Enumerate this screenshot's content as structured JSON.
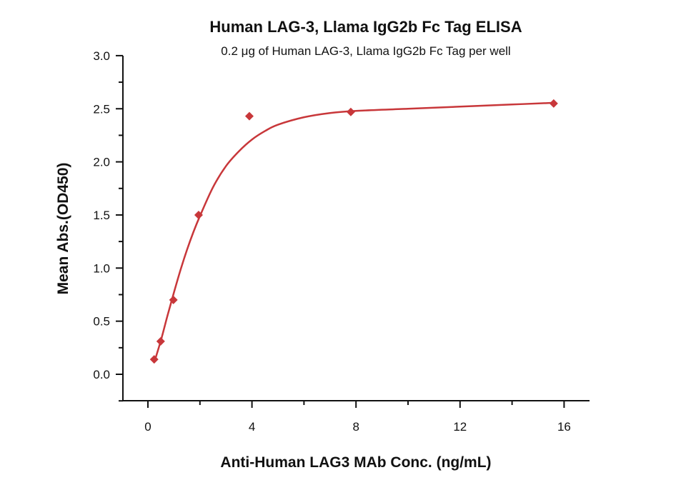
{
  "chart_data": {
    "type": "scatter",
    "title": "Human LAG-3, Llama IgG2b Fc Tag ELISA",
    "subtitle": "0.2 μg of Human LAG-3, Llama IgG2b Fc Tag per well",
    "xlabel": "Anti-Human LAG3 MAb Conc. (ng/mL)",
    "ylabel": "Mean Abs.(OD450)",
    "xlim": [
      -1,
      17
    ],
    "ylim": [
      -0.25,
      3.0
    ],
    "x_ticks": [
      0,
      4,
      8,
      12,
      16
    ],
    "x_tick_labels": [
      "0",
      "4",
      "8",
      "12",
      "16"
    ],
    "x_minor_ticks": [
      2,
      6,
      10,
      14
    ],
    "y_ticks": [
      0.0,
      0.5,
      1.0,
      1.5,
      2.0,
      2.5,
      3.0
    ],
    "y_tick_labels": [
      "0.0",
      "0.5",
      "1.0",
      "1.5",
      "2.0",
      "2.5",
      "3.0"
    ],
    "y_minor_ticks": [
      -0.25,
      0.25,
      0.75,
      1.25,
      1.75,
      2.25,
      2.75
    ],
    "grid": false,
    "series": [
      {
        "x": [
          0.24,
          0.49,
          0.98,
          1.95,
          3.9,
          7.8,
          15.6
        ],
        "y": [
          0.14,
          0.31,
          0.7,
          1.5,
          2.43,
          2.47,
          2.55
        ],
        "marker": "diamond",
        "color": "#c8373a"
      }
    ],
    "fit_curve": {
      "color": "#c8373a",
      "x": [
        0.24,
        0.5,
        0.75,
        1,
        1.25,
        1.5,
        1.75,
        2,
        2.5,
        3,
        3.5,
        4,
        4.5,
        5,
        6,
        7,
        8,
        10,
        12,
        14,
        15.6
      ],
      "y": [
        0.11,
        0.32,
        0.55,
        0.77,
        0.98,
        1.17,
        1.34,
        1.49,
        1.76,
        1.96,
        2.1,
        2.21,
        2.29,
        2.35,
        2.42,
        2.46,
        2.48,
        2.5,
        2.52,
        2.54,
        2.556
      ]
    }
  }
}
